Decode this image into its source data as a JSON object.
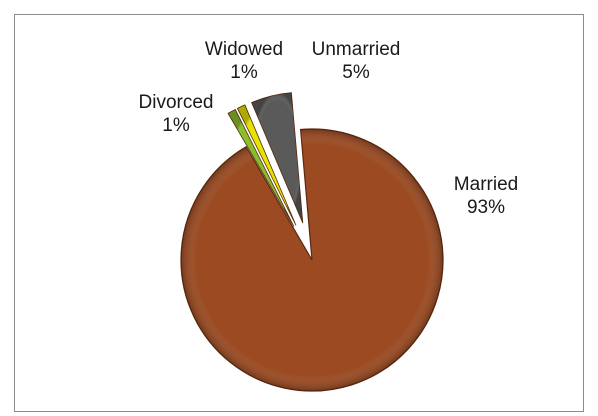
{
  "chart_data": {
    "type": "pie",
    "title": "",
    "slices": [
      {
        "label": "Married",
        "pct_label": "93%",
        "value": 93,
        "color": "#9b4a21"
      },
      {
        "label": "Divorced",
        "pct_label": "1%",
        "value": 1,
        "color": "#8bbf2a"
      },
      {
        "label": "Widowed",
        "pct_label": "1%",
        "value": 1,
        "color": "#e8e200"
      },
      {
        "label": "Unmarried",
        "pct_label": "5%",
        "value": 5,
        "color": "#5a5a5a"
      }
    ],
    "legend": "none",
    "exploded": true,
    "style": "3D bevel"
  }
}
